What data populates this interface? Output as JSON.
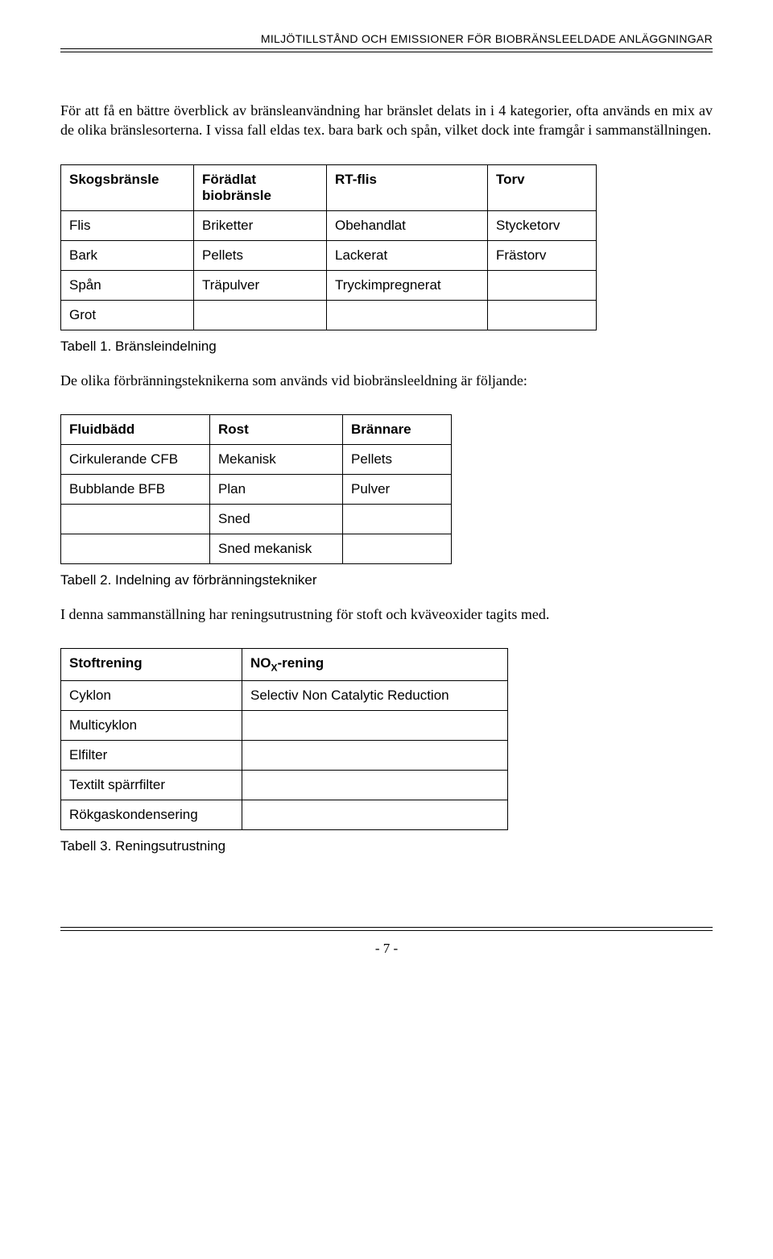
{
  "header": {
    "title": "MILJÖTILLSTÅND OCH EMISSIONER FÖR BIOBRÄNSLEELDADE ANLÄGGNINGAR"
  },
  "paragraphs": {
    "p1": "För att få en bättre överblick av bränsleanvändning har bränslet delats in i 4 kategorier, ofta används en mix av de olika bränslesorterna. I vissa fall eldas tex. bara bark och spån, vilket dock inte framgår i sammanställningen.",
    "p2": "De olika förbränningsteknikerna som används vid biobränsleeldning är följande:",
    "p3": "I denna sammanställning har reningsutrustning för stoft och kväveoxider tagits med."
  },
  "table1": {
    "headers": {
      "c1": "Skogsbränsle",
      "c2": "Förädlat biobränsle",
      "c3": "RT-flis",
      "c4": "Torv"
    },
    "rows": [
      {
        "c1": "Flis",
        "c2": "Briketter",
        "c3": "Obehandlat",
        "c4": "Stycketorv"
      },
      {
        "c1": "Bark",
        "c2": "Pellets",
        "c3": "Lackerat",
        "c4": "Frästorv"
      },
      {
        "c1": "Spån",
        "c2": "Träpulver",
        "c3": "Tryckimpregnerat",
        "c4": ""
      },
      {
        "c1": "Grot",
        "c2": "",
        "c3": "",
        "c4": ""
      }
    ],
    "caption": "Tabell 1. Bränsleindelning"
  },
  "table2": {
    "headers": {
      "c1": "Fluidbädd",
      "c2": "Rost",
      "c3": "Brännare"
    },
    "rows": [
      {
        "c1": "Cirkulerande CFB",
        "c2": "Mekanisk",
        "c3": "Pellets"
      },
      {
        "c1": "Bubblande BFB",
        "c2": "Plan",
        "c3": "Pulver"
      },
      {
        "c1": "",
        "c2": "Sned",
        "c3": ""
      },
      {
        "c1": "",
        "c2": "Sned mekanisk",
        "c3": ""
      }
    ],
    "caption": "Tabell 2. Indelning av förbränningstekniker"
  },
  "table3": {
    "headers": {
      "c1": "Stoftrening",
      "c2_pre": "NO",
      "c2_sub": "X",
      "c2_post": "-rening"
    },
    "rows": [
      {
        "c1": "Cyklon",
        "c2": "Selectiv Non Catalytic Reduction"
      },
      {
        "c1": "Multicyklon",
        "c2": ""
      },
      {
        "c1": "Elfilter",
        "c2": ""
      },
      {
        "c1": "Textilt spärrfilter",
        "c2": ""
      },
      {
        "c1": "Rökgaskondensering",
        "c2": ""
      }
    ],
    "caption": "Tabell 3. Reningsutrustning"
  },
  "footer": {
    "page_num": "- 7 -"
  }
}
